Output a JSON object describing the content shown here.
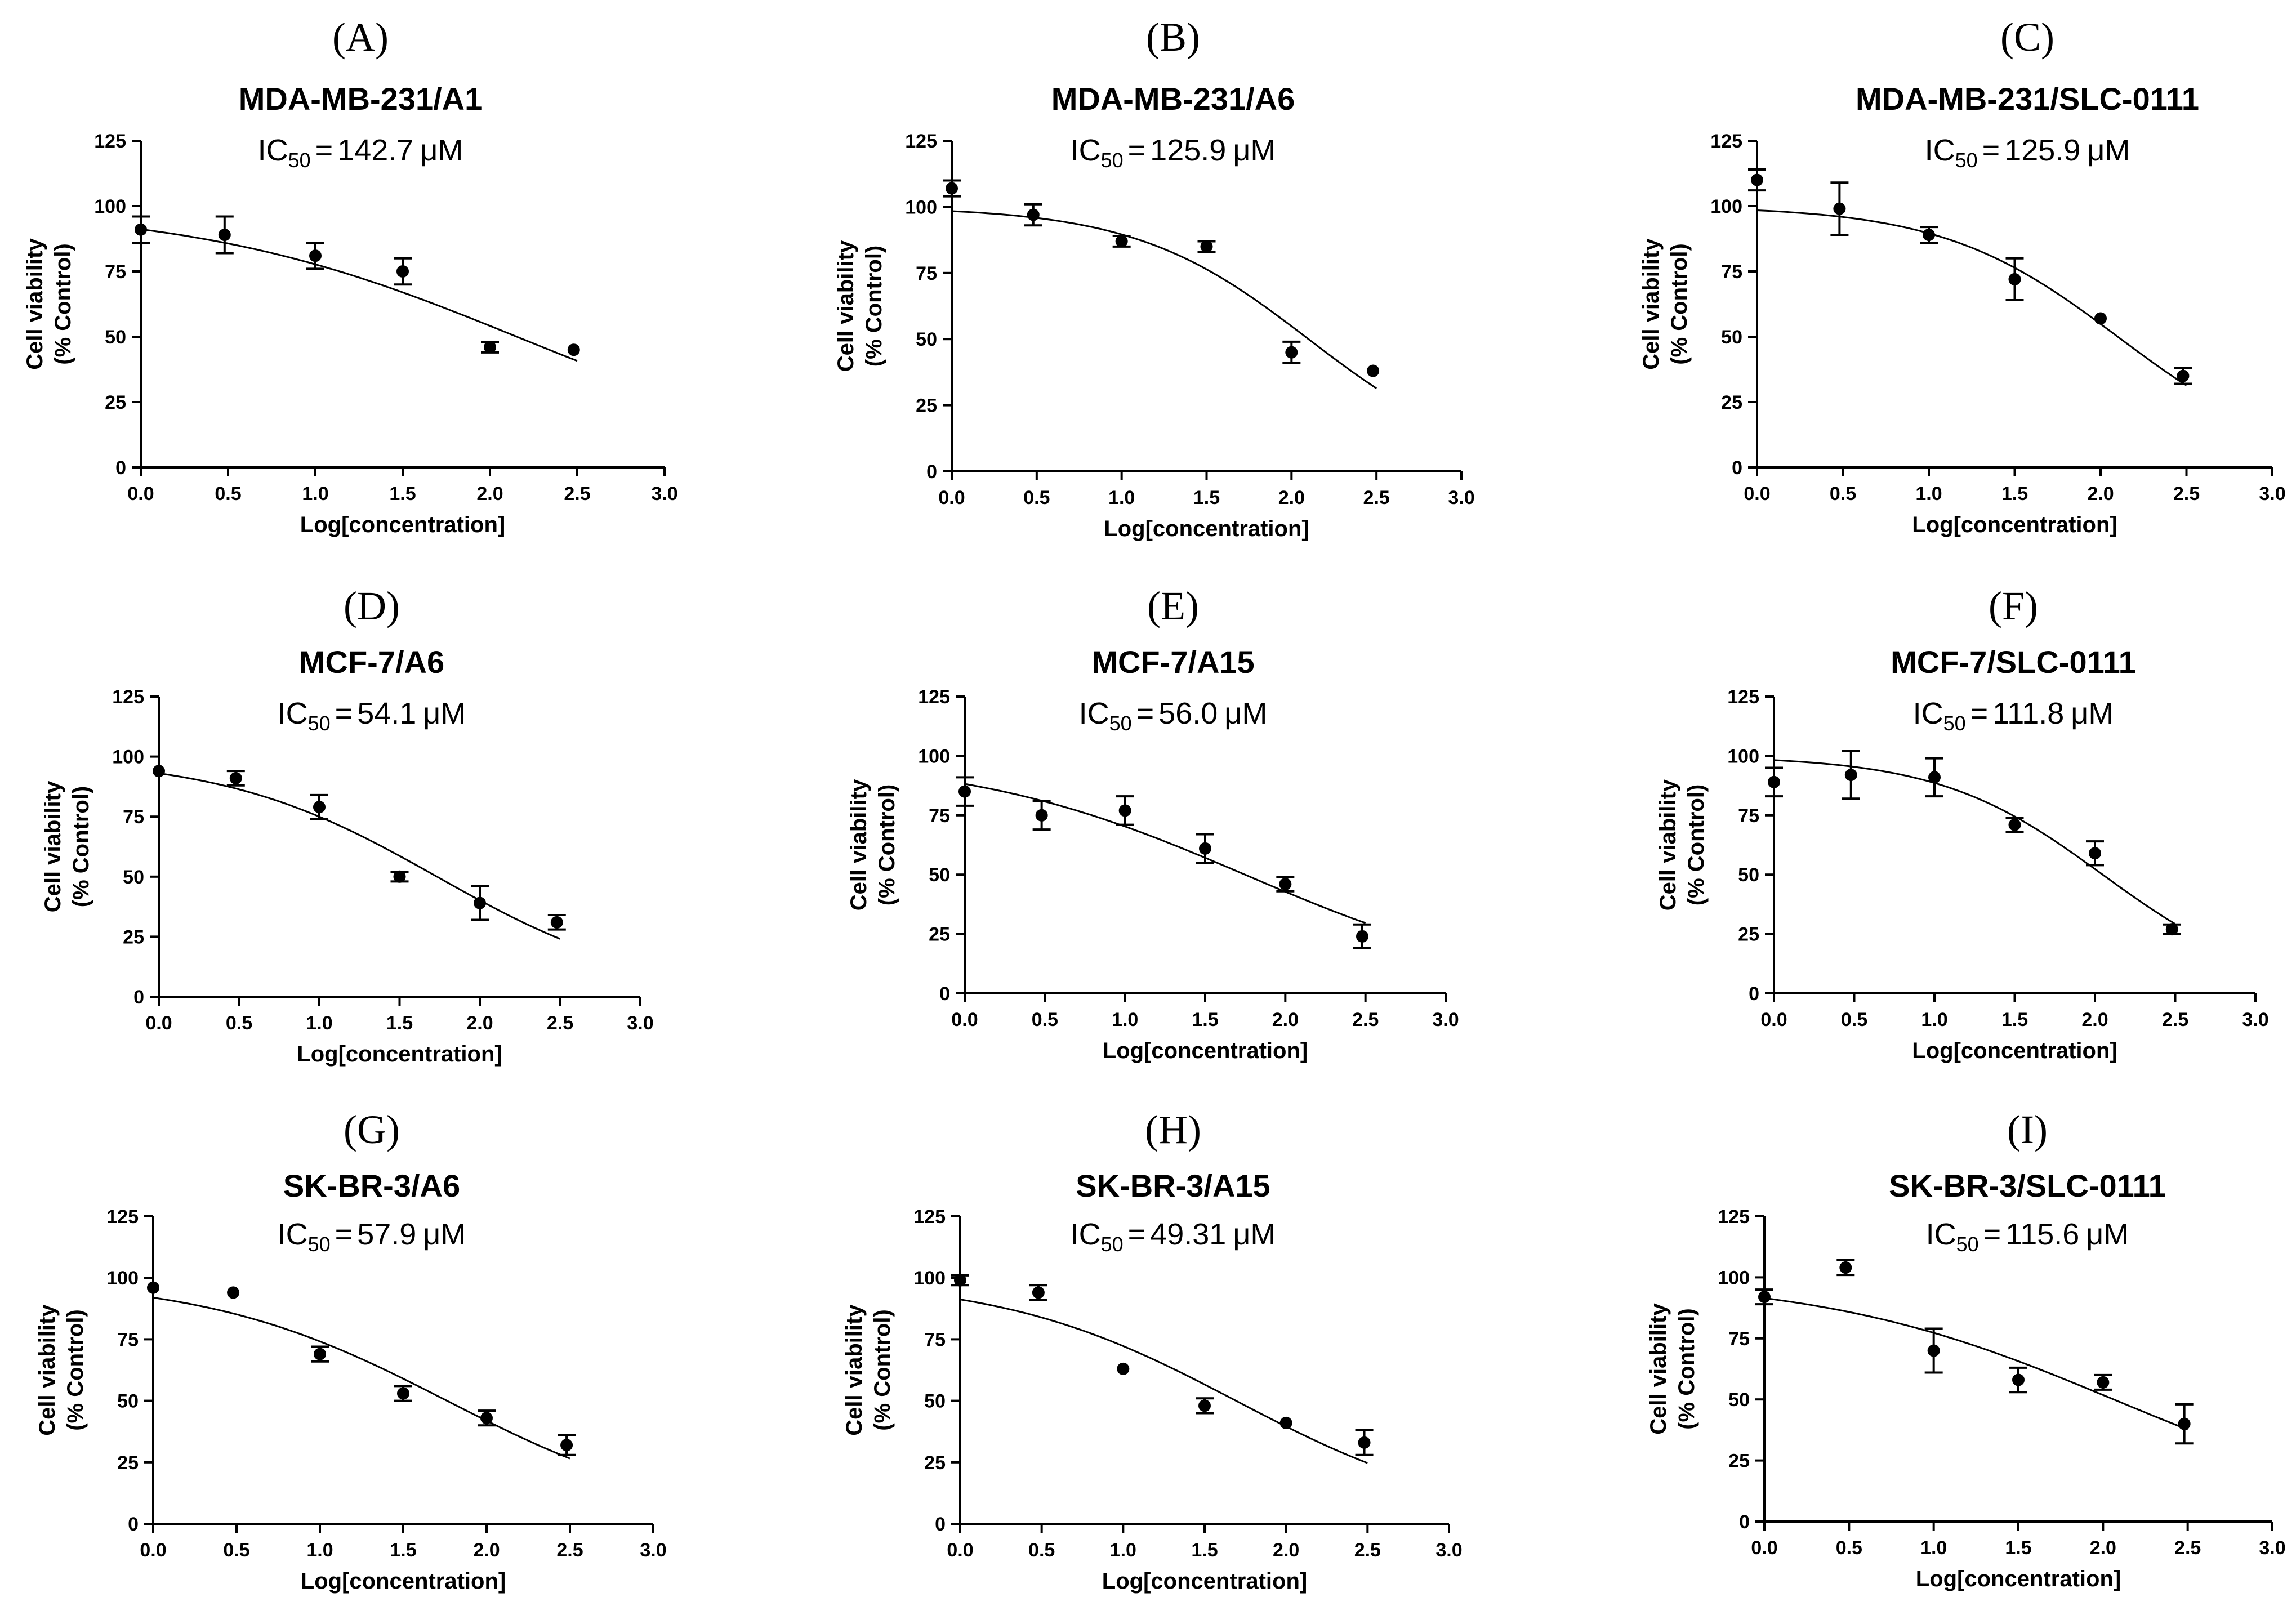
{
  "figure": {
    "x_label": "Log[concentration]",
    "y_label_line1": "Cell viability",
    "y_label_line2": "(% Control)",
    "ic50_prefix": "IC",
    "ic50_subscript": "50",
    "ic50_unit": "μM",
    "ic50_eq": "="
  },
  "chart_data": [
    {
      "letter": "(A)",
      "title": "MDA-MB-231/A1",
      "ic50": "142.7",
      "type": "scatter",
      "xlabel": "Log[concentration]",
      "ylabel": "Cell viability (% Control)",
      "xlim": [
        0,
        3
      ],
      "ylim": [
        0,
        125
      ],
      "x_ticks": [
        "0.0",
        "0.5",
        "1.0",
        "1.5",
        "2.0",
        "2.5",
        "3.0"
      ],
      "y_ticks": [
        "0",
        "25",
        "50",
        "75",
        "100",
        "125"
      ],
      "x": [
        0,
        0.48,
        1,
        1.5,
        2,
        2.48
      ],
      "y": [
        91,
        89,
        81,
        75,
        46,
        45
      ],
      "err": [
        5,
        7,
        5,
        5,
        2,
        1
      ],
      "fit": {
        "top": 100,
        "bottom": 0,
        "logIC50": 2.154,
        "hill": 0.47,
        "x_range": [
          0,
          2.5
        ]
      }
    },
    {
      "letter": "(B)",
      "title": "MDA-MB-231/A6",
      "ic50": "125.9",
      "type": "scatter",
      "xlabel": "Log[concentration]",
      "ylabel": "Cell viability (% Control)",
      "xlim": [
        0,
        3
      ],
      "ylim": [
        0,
        125
      ],
      "x_ticks": [
        "0.0",
        "0.5",
        "1.0",
        "1.5",
        "2.0",
        "2.5",
        "3.0"
      ],
      "y_ticks": [
        "0",
        "25",
        "50",
        "75",
        "100",
        "125"
      ],
      "x": [
        0,
        0.48,
        1,
        1.5,
        2,
        2.48
      ],
      "y": [
        107,
        97,
        87,
        85,
        45,
        38
      ],
      "err": [
        3,
        4,
        2,
        2,
        4,
        1
      ],
      "fit": {
        "top": 100,
        "bottom": 0,
        "logIC50": 2.1,
        "hill": 0.85,
        "x_range": [
          0,
          2.5
        ]
      }
    },
    {
      "letter": "(C)",
      "title": "MDA-MB-231/SLC-0111",
      "ic50": "125.9",
      "type": "scatter",
      "xlabel": "Log[concentration]",
      "ylabel": "Cell viability (% Control)",
      "xlim": [
        0,
        3
      ],
      "ylim": [
        0,
        125
      ],
      "x_ticks": [
        "0.0",
        "0.5",
        "1.0",
        "1.5",
        "2.0",
        "2.5",
        "3.0"
      ],
      "y_ticks": [
        "0",
        "25",
        "50",
        "75",
        "100",
        "125"
      ],
      "x": [
        0,
        0.48,
        1,
        1.5,
        2,
        2.48
      ],
      "y": [
        110,
        99,
        89,
        72,
        57,
        35
      ],
      "err": [
        4,
        10,
        3,
        8,
        1,
        3
      ],
      "fit": {
        "top": 100,
        "bottom": 0,
        "logIC50": 2.1,
        "hill": 0.85,
        "x_range": [
          0,
          2.5
        ]
      }
    },
    {
      "letter": "(D)",
      "title": "MCF-7/A6",
      "ic50": "54.1",
      "type": "scatter",
      "xlabel": "Log[concentration]",
      "ylabel": "Cell viability (% Control)",
      "xlim": [
        0,
        3
      ],
      "ylim": [
        0,
        125
      ],
      "x_ticks": [
        "0.0",
        "0.5",
        "1.0",
        "1.5",
        "2.0",
        "2.5",
        "3.0"
      ],
      "y_ticks": [
        "0",
        "25",
        "50",
        "75",
        "100",
        "125"
      ],
      "x": [
        0,
        0.48,
        1,
        1.5,
        2,
        2.48
      ],
      "y": [
        94,
        91,
        79,
        50,
        39,
        31
      ],
      "err": [
        1,
        3,
        5,
        2,
        7,
        3
      ],
      "fit": {
        "top": 100,
        "bottom": 0,
        "logIC50": 1.733,
        "hill": 0.65,
        "x_range": [
          0,
          2.5
        ]
      }
    },
    {
      "letter": "(E)",
      "title": "MCF-7/A15",
      "ic50": "56.0",
      "type": "scatter",
      "xlabel": "Log[concentration]",
      "ylabel": "Cell viability (% Control)",
      "xlim": [
        0,
        3
      ],
      "ylim": [
        0,
        125
      ],
      "x_ticks": [
        "0.0",
        "0.5",
        "1.0",
        "1.5",
        "2.0",
        "2.5",
        "3.0"
      ],
      "y_ticks": [
        "0",
        "25",
        "50",
        "75",
        "100",
        "125"
      ],
      "x": [
        0,
        0.48,
        1,
        1.5,
        2,
        2.48
      ],
      "y": [
        85,
        75,
        77,
        61,
        46,
        24
      ],
      "err": [
        6,
        6,
        6,
        6,
        3,
        5
      ],
      "fit": {
        "top": 100,
        "bottom": 0,
        "logIC50": 1.748,
        "hill": 0.5,
        "x_range": [
          0,
          2.5
        ]
      }
    },
    {
      "letter": "(F)",
      "title": "MCF-7/SLC-0111",
      "ic50": "111.8",
      "type": "scatter",
      "xlabel": "Log[concentration]",
      "ylabel": "Cell viability (% Control)",
      "xlim": [
        0,
        3
      ],
      "ylim": [
        0,
        125
      ],
      "x_ticks": [
        "0.0",
        "0.5",
        "1.0",
        "1.5",
        "2.0",
        "2.5",
        "3.0"
      ],
      "y_ticks": [
        "0",
        "25",
        "50",
        "75",
        "100",
        "125"
      ],
      "x": [
        0,
        0.48,
        1,
        1.5,
        2,
        2.48
      ],
      "y": [
        89,
        92,
        91,
        71,
        59,
        27
      ],
      "err": [
        6,
        10,
        8,
        3,
        5,
        2
      ],
      "fit": {
        "top": 100,
        "bottom": 0,
        "logIC50": 2.048,
        "hill": 0.85,
        "x_range": [
          0,
          2.5
        ]
      }
    },
    {
      "letter": "(G)",
      "title": "SK-BR-3/A6",
      "ic50": "57.9",
      "type": "scatter",
      "xlabel": "Log[concentration]",
      "ylabel": "Cell viability (% Control)",
      "xlim": [
        0,
        3
      ],
      "ylim": [
        0,
        125
      ],
      "x_ticks": [
        "0.0",
        "0.5",
        "1.0",
        "1.5",
        "2.0",
        "2.5",
        "3.0"
      ],
      "y_ticks": [
        "0",
        "25",
        "50",
        "75",
        "100",
        "125"
      ],
      "x": [
        0,
        0.48,
        1,
        1.5,
        2,
        2.48
      ],
      "y": [
        96,
        94,
        69,
        53,
        43,
        32
      ],
      "err": [
        1,
        1,
        3,
        3,
        3,
        4
      ],
      "fit": {
        "top": 100,
        "bottom": 0,
        "logIC50": 1.763,
        "hill": 0.6,
        "x_range": [
          0,
          2.5
        ]
      }
    },
    {
      "letter": "(H)",
      "title": "SK-BR-3/A15",
      "ic50": "49.31",
      "type": "scatter",
      "xlabel": "Log[concentration]",
      "ylabel": "Cell viability (% Control)",
      "xlim": [
        0,
        3
      ],
      "ylim": [
        0,
        125
      ],
      "x_ticks": [
        "0.0",
        "0.5",
        "1.0",
        "1.5",
        "2.0",
        "2.5",
        "3.0"
      ],
      "y_ticks": [
        "0",
        "25",
        "50",
        "75",
        "100",
        "125"
      ],
      "x": [
        0,
        0.48,
        1,
        1.5,
        2,
        2.48
      ],
      "y": [
        99,
        94,
        63,
        48,
        41,
        33
      ],
      "err": [
        2,
        3,
        1,
        3,
        1,
        5
      ],
      "fit": {
        "top": 100,
        "bottom": 0,
        "logIC50": 1.693,
        "hill": 0.6,
        "x_range": [
          0,
          2.5
        ]
      }
    },
    {
      "letter": "(I)",
      "title": "SK-BR-3/SLC-0111",
      "ic50": "115.6",
      "type": "scatter",
      "xlabel": "Log[concentration]",
      "ylabel": "Cell viability (% Control)",
      "xlim": [
        0,
        3
      ],
      "ylim": [
        0,
        125
      ],
      "x_ticks": [
        "0.0",
        "0.5",
        "1.0",
        "1.5",
        "2.0",
        "2.5",
        "3.0"
      ],
      "y_ticks": [
        "0",
        "25",
        "50",
        "75",
        "100",
        "125"
      ],
      "x": [
        0,
        0.48,
        1,
        1.5,
        2,
        2.48
      ],
      "y": [
        92,
        104,
        70,
        58,
        57,
        40
      ],
      "err": [
        3,
        3,
        9,
        5,
        3,
        8
      ],
      "fit": {
        "top": 100,
        "bottom": 0,
        "logIC50": 2.063,
        "hill": 0.5,
        "x_range": [
          0,
          2.5
        ]
      }
    }
  ]
}
